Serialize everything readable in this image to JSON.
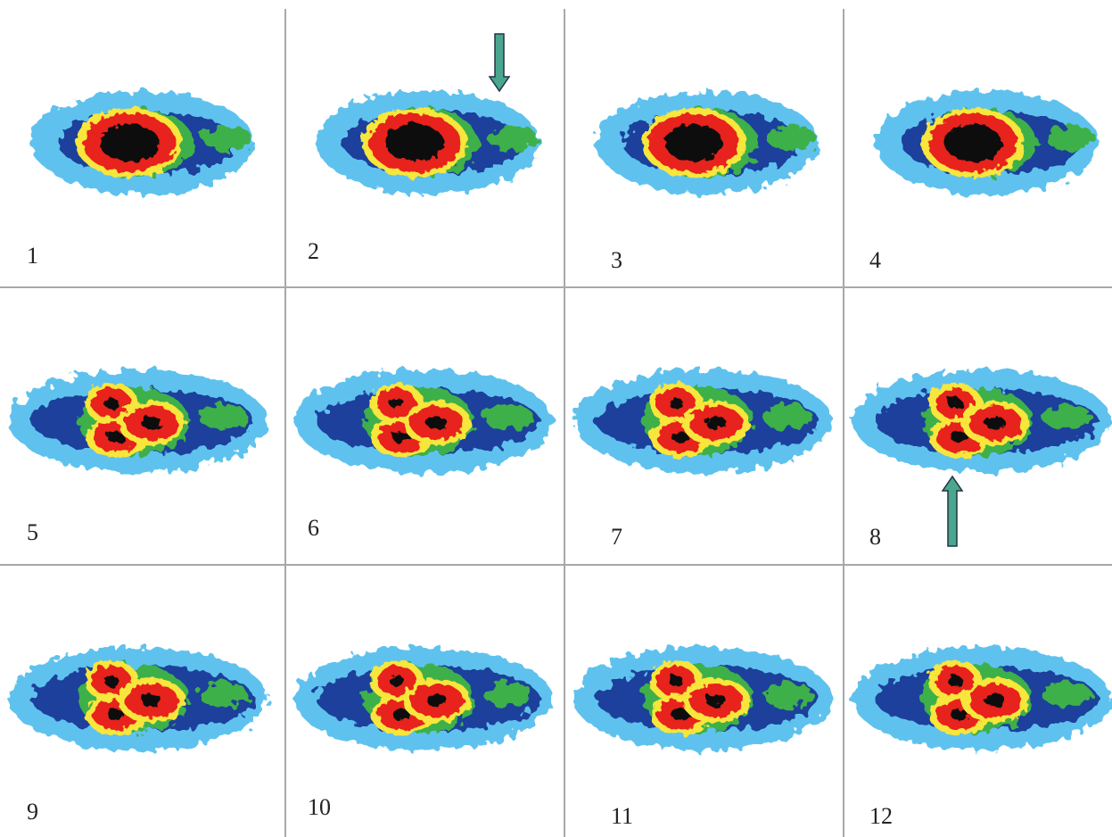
{
  "panels": [
    {
      "label": "1"
    },
    {
      "label": "2"
    },
    {
      "label": "3"
    },
    {
      "label": "4"
    },
    {
      "label": "5"
    },
    {
      "label": "6"
    },
    {
      "label": "7"
    },
    {
      "label": "8"
    },
    {
      "label": "9"
    },
    {
      "label": "10"
    },
    {
      "label": "11"
    },
    {
      "label": "12"
    }
  ]
}
